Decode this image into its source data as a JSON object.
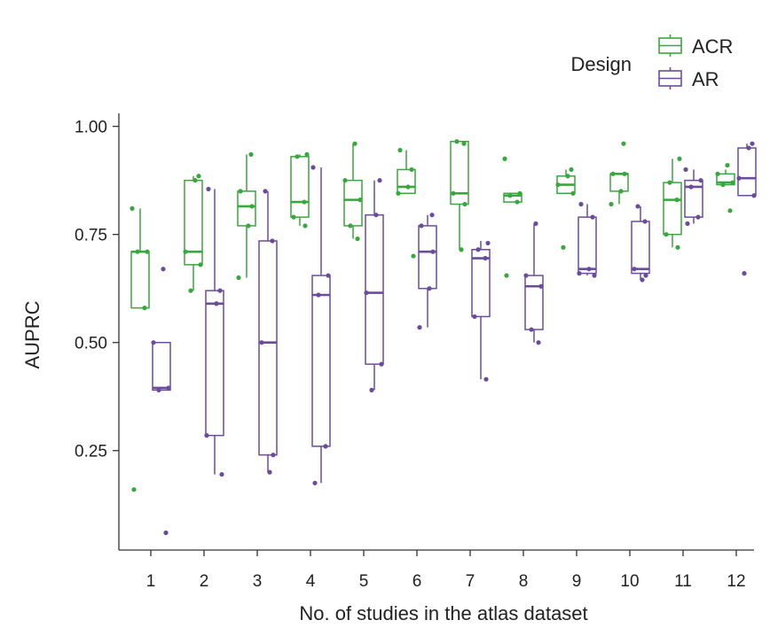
{
  "chart_data": {
    "type": "box",
    "xlabel": "No. of studies in the atlas dataset",
    "ylabel": "AUPRC",
    "ylim": [
      0.02,
      1.03
    ],
    "yticks": [
      0.25,
      0.5,
      0.75,
      1.0
    ],
    "ytick_labels": [
      "0.25",
      "0.50",
      "0.75",
      "1.00"
    ],
    "categories": [
      "1",
      "2",
      "3",
      "4",
      "5",
      "6",
      "7",
      "8",
      "9",
      "10",
      "11",
      "12"
    ],
    "legend": {
      "title": "Design",
      "position": "top-right",
      "entries": [
        {
          "name": "ACR",
          "color": "#3aa63f"
        },
        {
          "name": "AR",
          "color": "#6b4c9a"
        }
      ]
    },
    "series": [
      {
        "name": "ACR",
        "color": "#3aa63f",
        "boxes": [
          {
            "q1": 0.58,
            "median": 0.71,
            "q3": 0.71,
            "whisker_low": 0.58,
            "whisker_high": 0.81,
            "points": [
              0.16,
              0.58,
              0.71,
              0.71,
              0.81
            ]
          },
          {
            "q1": 0.68,
            "median": 0.71,
            "q3": 0.875,
            "whisker_low": 0.62,
            "whisker_high": 0.885,
            "points": [
              0.62,
              0.68,
              0.71,
              0.875,
              0.885
            ]
          },
          {
            "q1": 0.77,
            "median": 0.815,
            "q3": 0.85,
            "whisker_low": 0.65,
            "whisker_high": 0.935,
            "points": [
              0.65,
              0.77,
              0.815,
              0.85,
              0.935
            ]
          },
          {
            "q1": 0.79,
            "median": 0.825,
            "q3": 0.93,
            "whisker_low": 0.77,
            "whisker_high": 0.935,
            "points": [
              0.77,
              0.79,
              0.825,
              0.93,
              0.935
            ]
          },
          {
            "q1": 0.77,
            "median": 0.83,
            "q3": 0.875,
            "whisker_low": 0.74,
            "whisker_high": 0.96,
            "points": [
              0.74,
              0.77,
              0.83,
              0.875,
              0.96
            ]
          },
          {
            "q1": 0.845,
            "median": 0.86,
            "q3": 0.9,
            "whisker_low": 0.845,
            "whisker_high": 0.945,
            "points": [
              0.7,
              0.845,
              0.86,
              0.9,
              0.945
            ]
          },
          {
            "q1": 0.82,
            "median": 0.845,
            "q3": 0.965,
            "whisker_low": 0.715,
            "whisker_high": 0.965,
            "points": [
              0.715,
              0.82,
              0.845,
              0.96,
              0.965
            ]
          },
          {
            "q1": 0.825,
            "median": 0.84,
            "q3": 0.845,
            "whisker_low": 0.825,
            "whisker_high": 0.845,
            "points": [
              0.655,
              0.825,
              0.84,
              0.845,
              0.925
            ]
          },
          {
            "q1": 0.845,
            "median": 0.865,
            "q3": 0.885,
            "whisker_low": 0.845,
            "whisker_high": 0.9,
            "points": [
              0.72,
              0.845,
              0.865,
              0.885,
              0.9
            ]
          },
          {
            "q1": 0.85,
            "median": 0.89,
            "q3": 0.89,
            "whisker_low": 0.82,
            "whisker_high": 0.89,
            "points": [
              0.82,
              0.85,
              0.89,
              0.89,
              0.96
            ]
          },
          {
            "q1": 0.75,
            "median": 0.83,
            "q3": 0.87,
            "whisker_low": 0.72,
            "whisker_high": 0.925,
            "points": [
              0.72,
              0.75,
              0.83,
              0.87,
              0.925
            ]
          },
          {
            "q1": 0.865,
            "median": 0.87,
            "q3": 0.89,
            "whisker_low": 0.865,
            "whisker_high": 0.9,
            "points": [
              0.805,
              0.865,
              0.87,
              0.89,
              0.91
            ]
          }
        ]
      },
      {
        "name": "AR",
        "color": "#6b4c9a",
        "boxes": [
          {
            "q1": 0.39,
            "median": 0.395,
            "q3": 0.5,
            "whisker_low": 0.39,
            "whisker_high": 0.5,
            "points": [
              0.06,
              0.39,
              0.395,
              0.5,
              0.67
            ]
          },
          {
            "q1": 0.285,
            "median": 0.59,
            "q3": 0.62,
            "whisker_low": 0.195,
            "whisker_high": 0.855,
            "points": [
              0.195,
              0.285,
              0.59,
              0.62,
              0.855
            ]
          },
          {
            "q1": 0.24,
            "median": 0.5,
            "q3": 0.735,
            "whisker_low": 0.2,
            "whisker_high": 0.85,
            "points": [
              0.2,
              0.24,
              0.5,
              0.735,
              0.85
            ]
          },
          {
            "q1": 0.26,
            "median": 0.61,
            "q3": 0.655,
            "whisker_low": 0.175,
            "whisker_high": 0.905,
            "points": [
              0.175,
              0.26,
              0.61,
              0.655,
              0.905
            ]
          },
          {
            "q1": 0.45,
            "median": 0.615,
            "q3": 0.795,
            "whisker_low": 0.39,
            "whisker_high": 0.875,
            "points": [
              0.39,
              0.45,
              0.615,
              0.795,
              0.875
            ]
          },
          {
            "q1": 0.625,
            "median": 0.71,
            "q3": 0.77,
            "whisker_low": 0.535,
            "whisker_high": 0.795,
            "points": [
              0.535,
              0.625,
              0.71,
              0.77,
              0.795
            ]
          },
          {
            "q1": 0.56,
            "median": 0.695,
            "q3": 0.715,
            "whisker_low": 0.415,
            "whisker_high": 0.735,
            "points": [
              0.415,
              0.56,
              0.695,
              0.715,
              0.73
            ]
          },
          {
            "q1": 0.53,
            "median": 0.63,
            "q3": 0.655,
            "whisker_low": 0.5,
            "whisker_high": 0.775,
            "points": [
              0.5,
              0.53,
              0.63,
              0.655,
              0.775
            ]
          },
          {
            "q1": 0.66,
            "median": 0.67,
            "q3": 0.79,
            "whisker_low": 0.655,
            "whisker_high": 0.82,
            "points": [
              0.655,
              0.66,
              0.67,
              0.79,
              0.82
            ]
          },
          {
            "q1": 0.66,
            "median": 0.67,
            "q3": 0.78,
            "whisker_low": 0.645,
            "whisker_high": 0.815,
            "points": [
              0.645,
              0.655,
              0.67,
              0.78,
              0.815
            ]
          },
          {
            "q1": 0.79,
            "median": 0.86,
            "q3": 0.875,
            "whisker_low": 0.775,
            "whisker_high": 0.9,
            "points": [
              0.775,
              0.79,
              0.86,
              0.875,
              0.9
            ]
          },
          {
            "q1": 0.84,
            "median": 0.88,
            "q3": 0.95,
            "whisker_low": 0.84,
            "whisker_high": 0.96,
            "points": [
              0.66,
              0.84,
              0.88,
              0.95,
              0.96
            ]
          }
        ]
      }
    ]
  }
}
